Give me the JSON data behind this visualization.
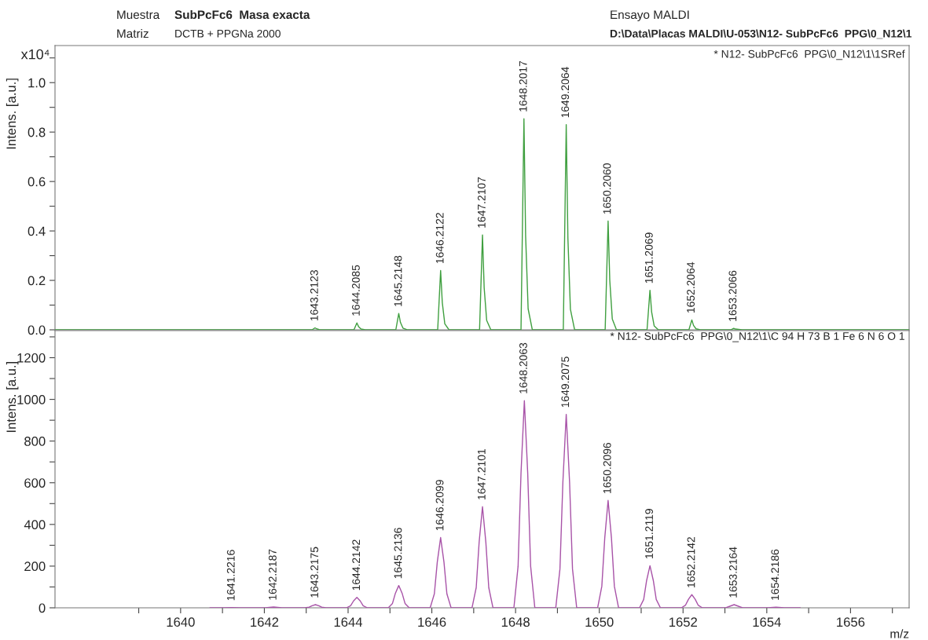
{
  "chart_data": [
    {
      "type": "line",
      "ylabel": "Intens. [a.u.]",
      "xlim": [
        1637,
        1657.4
      ],
      "ylim": [
        0,
        1.15
      ],
      "tick_labels": "y",
      "grid": false,
      "yticks": [
        {
          "value": 0.0,
          "label": "0.0"
        },
        {
          "value": 0.1,
          "label": null
        },
        {
          "value": 0.2,
          "label": "0.2"
        },
        {
          "value": 0.3,
          "label": null
        },
        {
          "value": 0.4,
          "label": "0.4"
        },
        {
          "value": 0.5,
          "label": null
        },
        {
          "value": 0.6,
          "label": "0.6"
        },
        {
          "value": 0.7,
          "label": null
        },
        {
          "value": 0.8,
          "label": "0.8"
        },
        {
          "value": 0.9,
          "label": null
        },
        {
          "value": 1.0,
          "label": "1.0"
        },
        {
          "value": 1.1,
          "label": null
        }
      ],
      "series": [
        {
          "color": "#3f9f3f",
          "x": [
            1637,
            1643.14,
            1643.21,
            1643.25,
            1643.31,
            1643.41,
            1644.14,
            1644.21,
            1644.25,
            1644.31,
            1644.41,
            1645.14,
            1645.21,
            1645.25,
            1645.31,
            1645.41,
            1646.14,
            1646.21,
            1646.25,
            1646.31,
            1646.41,
            1647.14,
            1647.21,
            1647.25,
            1647.31,
            1647.41,
            1648.13,
            1648.2,
            1648.24,
            1648.3,
            1648.4,
            1649.14,
            1649.21,
            1649.25,
            1649.31,
            1649.41,
            1650.14,
            1650.21,
            1650.25,
            1650.31,
            1650.41,
            1651.14,
            1651.21,
            1651.25,
            1651.31,
            1651.41,
            1652.14,
            1652.21,
            1652.25,
            1652.31,
            1652.41,
            1653.14,
            1653.21,
            1653.25,
            1653.41,
            1657.4
          ],
          "values": [
            0,
            0,
            0.008,
            0.004,
            0.001,
            0,
            0,
            0.028,
            0.013,
            0.003,
            0,
            0,
            0.066,
            0.03,
            0.007,
            0,
            0,
            0.24,
            0.11,
            0.024,
            0,
            0,
            0.384,
            0.17,
            0.038,
            0,
            0,
            0.854,
            0.38,
            0.085,
            0,
            0,
            0.83,
            0.37,
            0.083,
            0,
            0,
            0.44,
            0.2,
            0.044,
            0,
            0,
            0.16,
            0.072,
            0.016,
            0,
            0,
            0.04,
            0.018,
            0.004,
            0,
            0,
            0.006,
            0.003,
            0,
            0
          ]
        }
      ],
      "annotations": [
        "Muestra",
        "SubPcFc6  Masa exacta",
        "Matriz",
        "DCTB + PPGNa 2000",
        "Ensayo MALDI",
        "D:\\Data\\Placas MALDI\\U-053\\N12- SubPcFc6  PPG\\0_N12\\1",
        "* N12- SubPcFc6  PPG\\0_N12\\1\\1SRef",
        "x10⁴",
        {
          "text": "1643.2123",
          "x": 1643.2123,
          "y": 0.008
        },
        {
          "text": "1644.2085",
          "x": 1644.2085,
          "y": 0.028
        },
        {
          "text": "1645.2148",
          "x": 1645.2148,
          "y": 0.066
        },
        {
          "text": "1646.2122",
          "x": 1646.2122,
          "y": 0.24
        },
        {
          "text": "1647.2107",
          "x": 1647.2107,
          "y": 0.384
        },
        {
          "text": "1648.2017",
          "x": 1648.2017,
          "y": 0.854
        },
        {
          "text": "1649.2064",
          "x": 1649.2064,
          "y": 0.83
        },
        {
          "text": "1650.2060",
          "x": 1650.206,
          "y": 0.44
        },
        {
          "text": "1651.2069",
          "x": 1651.2069,
          "y": 0.16
        },
        {
          "text": "1652.2064",
          "x": 1652.2064,
          "y": 0.04
        },
        {
          "text": "1653.2066",
          "x": 1653.2066,
          "y": 0.006
        }
      ]
    },
    {
      "type": "line",
      "ylabel": "Intens. [a.u.]",
      "xlabel": "m/z",
      "xlim": [
        1637,
        1657.4
      ],
      "ylim": [
        0,
        1330
      ],
      "grid": false,
      "xticks": [
        {
          "value": 1639,
          "label": null
        },
        1640,
        {
          "value": 1641,
          "label": null
        },
        1642,
        {
          "value": 1643,
          "label": null
        },
        1644,
        {
          "value": 1645,
          "label": null
        },
        1646,
        {
          "value": 1647,
          "label": null
        },
        1648,
        {
          "value": 1649,
          "label": null
        },
        1650,
        {
          "value": 1651,
          "label": null
        },
        1652,
        {
          "value": 1653,
          "label": null
        },
        1654,
        {
          "value": 1655,
          "label": null
        },
        1656,
        {
          "value": 1657,
          "label": null
        }
      ],
      "yticks": [
        0,
        {
          "value": 100,
          "label": null
        },
        200,
        {
          "value": 300,
          "label": null
        },
        400,
        {
          "value": 500,
          "label": null
        },
        600,
        {
          "value": 700,
          "label": null
        },
        800,
        {
          "value": 900,
          "label": null
        },
        1000,
        {
          "value": 1100,
          "label": null
        },
        1200,
        {
          "value": 1300,
          "label": null
        }
      ],
      "series": [
        {
          "color": "#a853a8",
          "x": [
            1640.7,
            1641.02,
            1641.22,
            1641.42,
            1642.02,
            1642.22,
            1642.42,
            1642.97,
            1643.07,
            1643.14,
            1643.22,
            1643.3,
            1643.37,
            1643.47,
            1643.96,
            1644.06,
            1644.13,
            1644.21,
            1644.29,
            1644.36,
            1644.46,
            1644.96,
            1645.06,
            1645.13,
            1645.21,
            1645.29,
            1645.36,
            1645.46,
            1645.96,
            1646.06,
            1646.13,
            1646.21,
            1646.29,
            1646.36,
            1646.46,
            1646.96,
            1647.06,
            1647.13,
            1647.21,
            1647.29,
            1647.36,
            1647.46,
            1647.96,
            1648.06,
            1648.13,
            1648.21,
            1648.29,
            1648.36,
            1648.46,
            1648.96,
            1649.06,
            1649.13,
            1649.21,
            1649.29,
            1649.36,
            1649.46,
            1649.96,
            1650.06,
            1650.13,
            1650.21,
            1650.29,
            1650.36,
            1650.46,
            1650.96,
            1651.06,
            1651.13,
            1651.21,
            1651.29,
            1651.36,
            1651.46,
            1651.96,
            1652.06,
            1652.13,
            1652.21,
            1652.29,
            1652.36,
            1652.46,
            1653.02,
            1653.22,
            1653.42,
            1654.02,
            1654.22,
            1654.42,
            1654.8
          ],
          "values": [
            0,
            0,
            1,
            0,
            0,
            4,
            0,
            0,
            3,
            10,
            15,
            10,
            3,
            0,
            0,
            10,
            33,
            50,
            33,
            10,
            0,
            0,
            21,
            70,
            107,
            70,
            21,
            0,
            0,
            67,
            219,
            337,
            219,
            67,
            0,
            0,
            97,
            315,
            485,
            315,
            97,
            0,
            0,
            199,
            646,
            994,
            646,
            199,
            0,
            0,
            186,
            603,
            928,
            603,
            186,
            0,
            0,
            103,
            335,
            515,
            335,
            103,
            0,
            0,
            40,
            131,
            202,
            131,
            40,
            0,
            0,
            13,
            41,
            63,
            41,
            13,
            0,
            0,
            15,
            0,
            0,
            3,
            0,
            0
          ]
        }
      ],
      "annotations": [
        "* N12- SubPcFc6  PPG\\0_N12\\1\\C 94 H 73 B 1 Fe 6 N 6 O 1",
        {
          "text": "1641.2216",
          "x": 1641.2216,
          "y": 1
        },
        {
          "text": "1642.2187",
          "x": 1642.2187,
          "y": 4
        },
        {
          "text": "1643.2175",
          "x": 1643.2175,
          "y": 15
        },
        {
          "text": "1644.2142",
          "x": 1644.2142,
          "y": 50
        },
        {
          "text": "1645.2136",
          "x": 1645.2136,
          "y": 107
        },
        {
          "text": "1646.2099",
          "x": 1646.2099,
          "y": 337
        },
        {
          "text": "1647.2101",
          "x": 1647.2101,
          "y": 485
        },
        {
          "text": "1648.2063",
          "x": 1648.2063,
          "y": 994
        },
        {
          "text": "1649.2075",
          "x": 1649.2075,
          "y": 928
        },
        {
          "text": "1650.2096",
          "x": 1650.2096,
          "y": 515
        },
        {
          "text": "1651.2119",
          "x": 1651.2119,
          "y": 202
        },
        {
          "text": "1652.2142",
          "x": 1652.2142,
          "y": 63
        },
        {
          "text": "1653.2164",
          "x": 1653.2164,
          "y": 15
        },
        {
          "text": "1654.2186",
          "x": 1654.2186,
          "y": 3
        }
      ]
    }
  ]
}
